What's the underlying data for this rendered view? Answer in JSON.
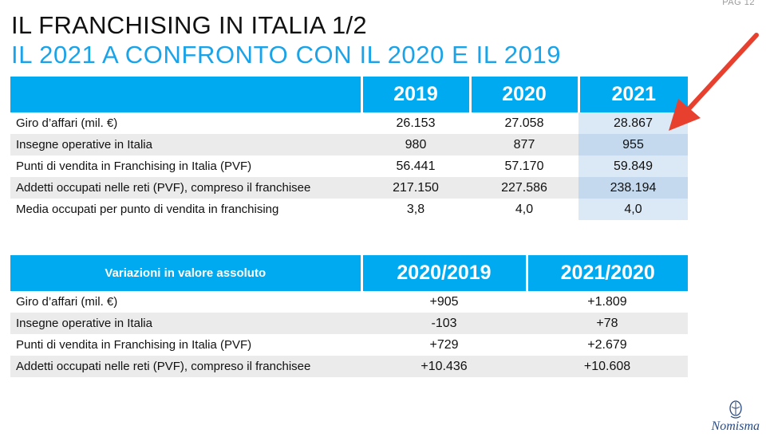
{
  "page": {
    "number": "PAG 12"
  },
  "title": {
    "line1": "IL FRANCHISING IN ITALIA 1/2",
    "line2": "IL 2021 A CONFRONTO CON IL 2020 E IL 2019"
  },
  "table_years": {
    "headers": [
      "",
      "2019",
      "2020",
      "2021"
    ],
    "rows": [
      {
        "label": "Giro d’affari (mil. €)",
        "v2019": "26.153",
        "v2020": "27.058",
        "v2021": "28.867"
      },
      {
        "label": "Insegne operative in Italia",
        "v2019": "980",
        "v2020": "877",
        "v2021": "955"
      },
      {
        "label": "Punti di vendita in Franchising in Italia (PVF)",
        "v2019": "56.441",
        "v2020": "57.170",
        "v2021": "59.849"
      },
      {
        "label": "Addetti occupati nelle reti (PVF), compreso il franchisee",
        "v2019": "217.150",
        "v2020": "227.586",
        "v2021": "238.194"
      },
      {
        "label": "Media occupati per punto di vendita in franchising",
        "v2019": "3,8",
        "v2020": "4,0",
        "v2021": "4,0"
      }
    ]
  },
  "table_variations": {
    "headers": [
      "Variazioni in valore assoluto",
      "2020/2019",
      "2021/2020"
    ],
    "rows": [
      {
        "label": "Giro d’affari (mil. €)",
        "d1": "+905",
        "d2": "+1.809"
      },
      {
        "label": "Insegne operative in Italia",
        "d1": "-103",
        "d2": "+78"
      },
      {
        "label": "Punti di vendita in Franchising in Italia (PVF)",
        "d1": "+729",
        "d2": "+2.679"
      },
      {
        "label": "Addetti occupati nelle reti (PVF), compreso il franchisee",
        "d1": "+10.436",
        "d2": "+10.608"
      }
    ]
  },
  "logo": {
    "name": "Nomisma"
  },
  "colors": {
    "accent": "#00aaf0",
    "title_blue": "#1aa3e8",
    "arrow": "#e8402e",
    "highlight": "#dbe9f7"
  }
}
